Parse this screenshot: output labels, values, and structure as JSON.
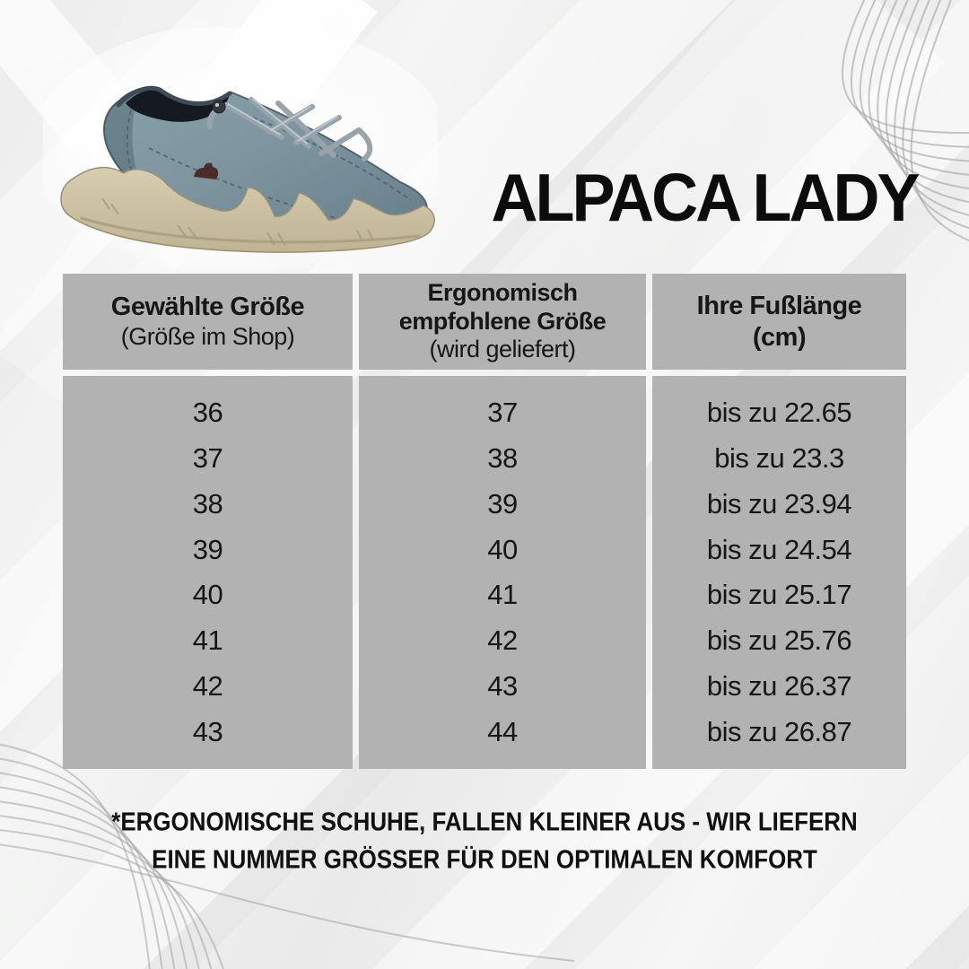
{
  "colors": {
    "background": "#eef0ef",
    "table_cell": "#b2b2b2",
    "text": "#161616",
    "title": "#0c0c0c",
    "shoe_upper": "#7e959f",
    "shoe_upper_dark": "#5f7883",
    "shoe_sole": "#cec3a5",
    "shoe_laces": "#98a3ac",
    "shoe_lining": "#14191f",
    "shoe_logo": "#4a2d28",
    "corner_curves": "#9b9b9b"
  },
  "header": {
    "title": "ALPACA LADY"
  },
  "size_table": {
    "columns": [
      {
        "title_line1": "Gewählte Größe",
        "title_line2": "",
        "subtitle": "(Größe im Shop)"
      },
      {
        "title_line1": "Ergonomisch",
        "title_line2": "empfohlene Größe",
        "subtitle": "(wird geliefert)"
      },
      {
        "title_line1": "Ihre Fußlänge",
        "title_line2": "(cm)",
        "subtitle": ""
      }
    ]
  },
  "chart_data": {
    "type": "table",
    "title": "ALPACA LADY",
    "columns": [
      "Gewählte Größe (Größe im Shop)",
      "Ergonomisch empfohlene Größe (wird geliefert)",
      "Ihre Fußlänge (cm)"
    ],
    "rows": [
      [
        "36",
        "37",
        "bis zu 22.65"
      ],
      [
        "37",
        "38",
        "bis zu 23.3"
      ],
      [
        "38",
        "39",
        "bis zu 23.94"
      ],
      [
        "39",
        "40",
        "bis zu 24.54"
      ],
      [
        "40",
        "41",
        "bis zu 25.17"
      ],
      [
        "41",
        "42",
        "bis zu 25.76"
      ],
      [
        "42",
        "43",
        "bis zu 26.37"
      ],
      [
        "43",
        "44",
        "bis zu 26.87"
      ]
    ]
  },
  "footnote": {
    "line1": "*ERGONOMISCHE SCHUHE, FALLEN KLEINER AUS - WIR LIEFERN",
    "line2": "EINE NUMMER GRÖSSER FÜR DEN OPTIMALEN KOMFORT"
  }
}
